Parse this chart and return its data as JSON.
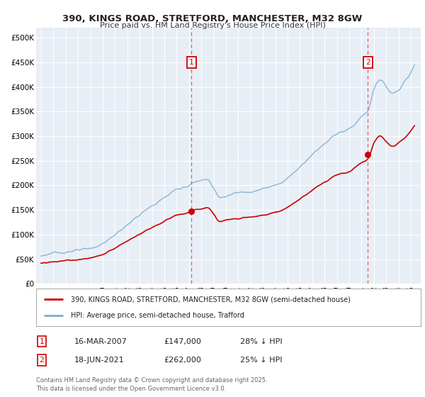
{
  "title1": "390, KINGS ROAD, STRETFORD, MANCHESTER, M32 8GW",
  "title2": "Price paid vs. HM Land Registry's House Price Index (HPI)",
  "legend_line1": "390, KINGS ROAD, STRETFORD, MANCHESTER, M32 8GW (semi-detached house)",
  "legend_line2": "HPI: Average price, semi-detached house, Trafford",
  "footnote": "Contains HM Land Registry data © Crown copyright and database right 2025.\nThis data is licensed under the Open Government Licence v3.0.",
  "marker1_date": "16-MAR-2007",
  "marker1_price": "£147,000",
  "marker1_hpi": "28% ↓ HPI",
  "marker2_date": "18-JUN-2021",
  "marker2_price": "£262,000",
  "marker2_hpi": "25% ↓ HPI",
  "price_color": "#cc0000",
  "hpi_color": "#7bafd4",
  "background_color": "#e8eef5",
  "marker_x1": 2007.2,
  "marker_x2": 2021.5,
  "sale1_price": 147000,
  "sale2_price": 262000,
  "ylim_top": 520000,
  "xlim_left": 1994.6,
  "xlim_right": 2025.8,
  "yticks": [
    0,
    50000,
    100000,
    150000,
    200000,
    250000,
    300000,
    350000,
    400000,
    450000,
    500000
  ],
  "ylabels": [
    "£0",
    "£50K",
    "£100K",
    "£150K",
    "£200K",
    "£250K",
    "£300K",
    "£350K",
    "£400K",
    "£450K",
    "£500K"
  ]
}
